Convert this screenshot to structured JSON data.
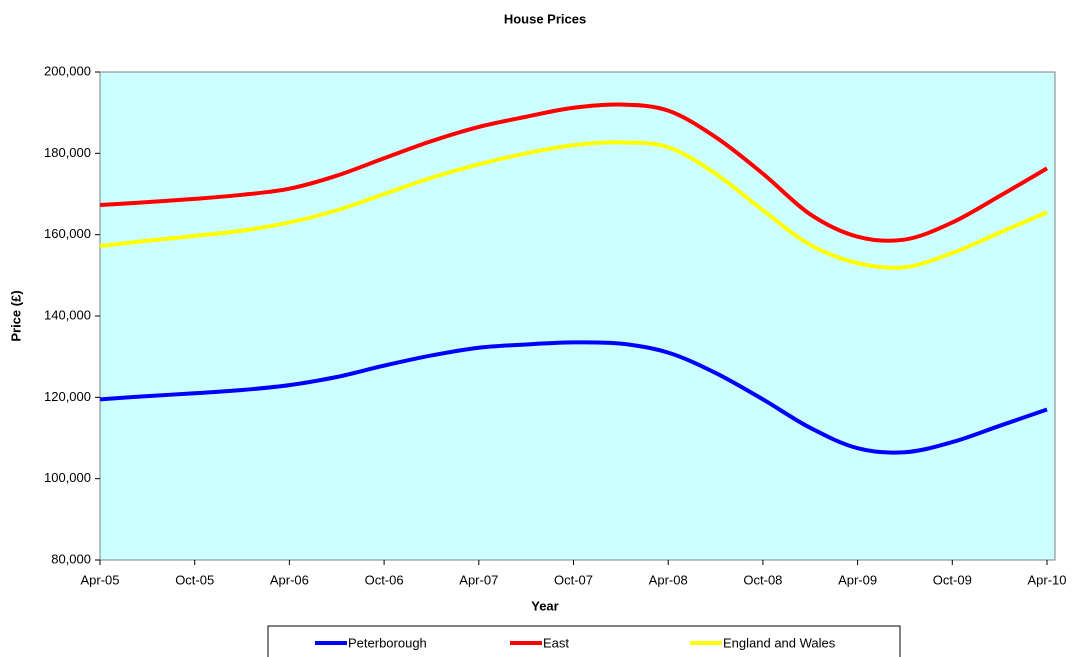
{
  "chart_data": {
    "type": "line",
    "title": "House Prices",
    "x_label": "Year",
    "y_label": "Price (£)",
    "categories": [
      "Apr-05",
      null,
      "Oct-05",
      null,
      "Apr-06",
      null,
      "Oct-06",
      null,
      "Apr-07",
      null,
      "Oct-07",
      null,
      "Apr-08",
      null,
      "Oct-08",
      null,
      "Apr-09",
      null,
      "Oct-09",
      null,
      "Apr-10"
    ],
    "series": [
      {
        "name": "Peterborough",
        "color": "#0000ff",
        "values": [
          119500,
          120300,
          121000,
          121800,
          123000,
          125000,
          127800,
          130300,
          132200,
          133000,
          133500,
          133200,
          131000,
          126000,
          119500,
          112500,
          107500,
          106500,
          109000,
          113000,
          117000
        ]
      },
      {
        "name": "East",
        "color": "#ff0000",
        "values": [
          167300,
          168000,
          168800,
          169800,
          171300,
          174500,
          178800,
          183000,
          186500,
          189000,
          191200,
          192000,
          190500,
          184000,
          175000,
          165000,
          159500,
          158800,
          163000,
          169500,
          176300
        ]
      },
      {
        "name": "England and Wales",
        "color": "#ffff00",
        "values": [
          157200,
          158500,
          159700,
          161000,
          163000,
          166000,
          170000,
          174000,
          177300,
          180000,
          182000,
          182700,
          181500,
          175000,
          166000,
          157500,
          153000,
          152000,
          155500,
          160500,
          165500
        ]
      }
    ],
    "ylim": [
      80000,
      200000
    ],
    "yticks": [
      {
        "value": 80000,
        "label": "80,000"
      },
      {
        "value": 100000,
        "label": "100,000"
      },
      {
        "value": 120000,
        "label": "120,000"
      },
      {
        "value": 140000,
        "label": "140,000"
      },
      {
        "value": 160000,
        "label": "160,000"
      },
      {
        "value": 180000,
        "label": "180,000"
      },
      {
        "value": 200000,
        "label": "200,000"
      }
    ],
    "plot_background": "#ccffff",
    "smooth": true,
    "legend": "bottom"
  }
}
